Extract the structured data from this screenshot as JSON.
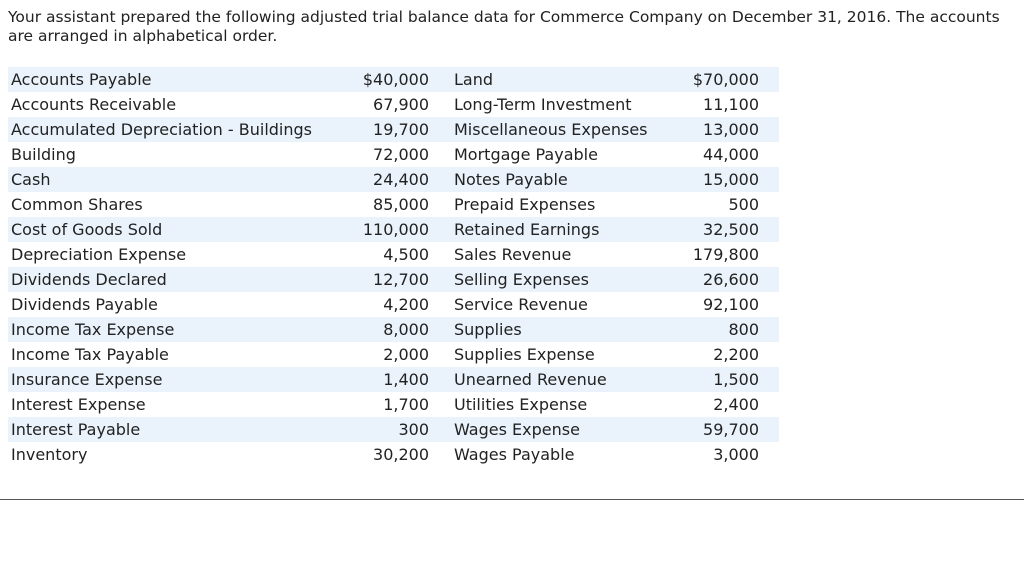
{
  "intro": {
    "text": "Your assistant prepared the following adjusted trial balance data for Commerce Company on December 31, 2016. The accounts are arranged in alphabetical order."
  },
  "trial_balance": {
    "rows": [
      {
        "left_account": "Accounts Payable",
        "left_amount": "$40,000",
        "right_account": "Land",
        "right_amount": "$70,000"
      },
      {
        "left_account": "Accounts Receivable",
        "left_amount": "67,900",
        "right_account": "Long-Term Investment",
        "right_amount": "11,100"
      },
      {
        "left_account": "Accumulated Depreciation - Buildings",
        "left_amount": "19,700",
        "right_account": "Miscellaneous Expenses",
        "right_amount": "13,000"
      },
      {
        "left_account": "Building",
        "left_amount": "72,000",
        "right_account": "Mortgage Payable",
        "right_amount": "44,000"
      },
      {
        "left_account": "Cash",
        "left_amount": "24,400",
        "right_account": "Notes Payable",
        "right_amount": "15,000"
      },
      {
        "left_account": "Common Shares",
        "left_amount": "85,000",
        "right_account": "Prepaid Expenses",
        "right_amount": "500"
      },
      {
        "left_account": "Cost of Goods Sold",
        "left_amount": "110,000",
        "right_account": "Retained Earnings",
        "right_amount": "32,500"
      },
      {
        "left_account": "Depreciation Expense",
        "left_amount": "4,500",
        "right_account": "Sales Revenue",
        "right_amount": "179,800"
      },
      {
        "left_account": "Dividends Declared",
        "left_amount": "12,700",
        "right_account": "Selling Expenses",
        "right_amount": "26,600"
      },
      {
        "left_account": "Dividends Payable",
        "left_amount": "4,200",
        "right_account": "Service Revenue",
        "right_amount": "92,100"
      },
      {
        "left_account": "Income Tax Expense",
        "left_amount": "8,000",
        "right_account": "Supplies",
        "right_amount": "800"
      },
      {
        "left_account": "Income Tax Payable",
        "left_amount": "2,000",
        "right_account": "Supplies Expense",
        "right_amount": "2,200"
      },
      {
        "left_account": "Insurance Expense",
        "left_amount": "1,400",
        "right_account": "Unearned Revenue",
        "right_amount": "1,500"
      },
      {
        "left_account": "Interest Expense",
        "left_amount": "1,700",
        "right_account": "Utilities Expense",
        "right_amount": "2,400"
      },
      {
        "left_account": "Interest Payable",
        "left_amount": "300",
        "right_account": "Wages Expense",
        "right_amount": "59,700"
      },
      {
        "left_account": "Inventory",
        "left_amount": "30,200",
        "right_account": "Wages Payable",
        "right_amount": "3,000"
      }
    ]
  },
  "colors": {
    "stripe": "#eaf3fc",
    "text": "#222222",
    "divider": "#555555"
  }
}
